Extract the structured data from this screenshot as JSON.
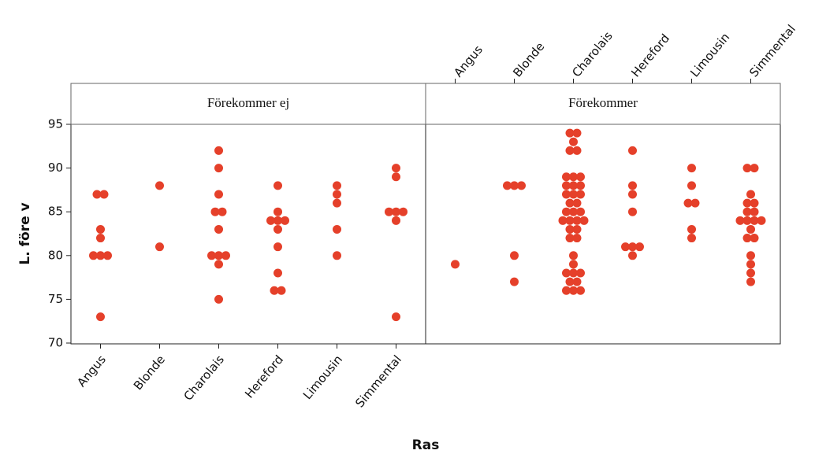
{
  "chart_data": {
    "type": "dotplot",
    "y_label": "L. före v",
    "x_label": "Ras",
    "ylim": [
      70,
      95
    ],
    "yticks": [
      70,
      75,
      80,
      85,
      90,
      95
    ],
    "color": "#e5402a",
    "panels": [
      {
        "title": "Förekommer ej",
        "categories": [
          "Angus",
          "Blonde",
          "Charolais",
          "Hereford",
          "Limousin",
          "Simmental"
        ],
        "values": [
          [
            87,
            87,
            83,
            82,
            80,
            80,
            80,
            73
          ],
          [
            88,
            81
          ],
          [
            92,
            90,
            87,
            85,
            85,
            83,
            80,
            80,
            80,
            79,
            75
          ],
          [
            88,
            85,
            84,
            84,
            84,
            83,
            81,
            78,
            76,
            76
          ],
          [
            88,
            87,
            86,
            83,
            80
          ],
          [
            90,
            89,
            85,
            85,
            85,
            84,
            73
          ]
        ]
      },
      {
        "title": "Förekommer",
        "categories": [
          "Angus",
          "Blonde",
          "Charolais",
          "Hereford",
          "Limousin",
          "Simmental"
        ],
        "values": [
          [
            79
          ],
          [
            88,
            88,
            88,
            80,
            77
          ],
          [
            94,
            94,
            93,
            92,
            92,
            89,
            89,
            89,
            88,
            88,
            88,
            87,
            87,
            87,
            86,
            86,
            85,
            85,
            85,
            84,
            84,
            84,
            84,
            83,
            83,
            82,
            82,
            80,
            79,
            78,
            78,
            78,
            77,
            77,
            76,
            76,
            76
          ],
          [
            92,
            88,
            87,
            85,
            81,
            81,
            81,
            80
          ],
          [
            90,
            88,
            86,
            86,
            83,
            82
          ],
          [
            90,
            90,
            87,
            86,
            86,
            85,
            85,
            84,
            84,
            84,
            84,
            83,
            82,
            82,
            80,
            79,
            78,
            77
          ]
        ]
      }
    ]
  }
}
